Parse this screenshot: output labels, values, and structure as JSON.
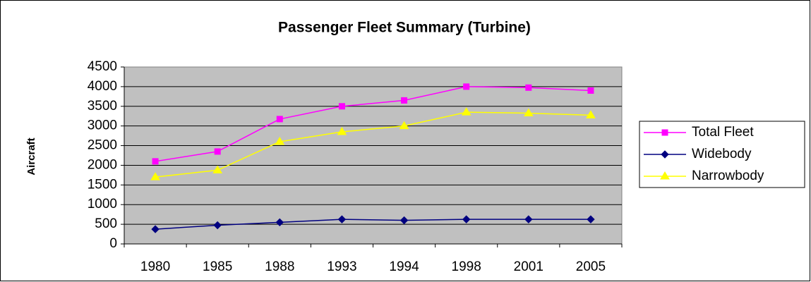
{
  "chart_data": {
    "type": "line",
    "title": "Passenger Fleet Summary (Turbine)",
    "y_label": "Aircraft",
    "categories": [
      "1980",
      "1985",
      "1988",
      "1993",
      "1994",
      "1998",
      "2001",
      "2005"
    ],
    "series": [
      {
        "name": "Total Fleet",
        "color": "#ff00ff",
        "marker": "square",
        "values": [
          2100,
          2350,
          3175,
          3500,
          3650,
          4000,
          3975,
          3900
        ]
      },
      {
        "name": "Widebody",
        "color": "#000080",
        "marker": "diamond",
        "values": [
          375,
          475,
          550,
          625,
          600,
          625,
          625,
          625
        ]
      },
      {
        "name": "Narrowbody",
        "color": "#ffff00",
        "marker": "triangle",
        "values": [
          1700,
          1875,
          2600,
          2850,
          3000,
          3350,
          3325,
          3275
        ]
      }
    ],
    "ylim": [
      0,
      4500
    ],
    "yticks": [
      0,
      500,
      1000,
      1500,
      2000,
      2500,
      3000,
      3500,
      4000,
      4500
    ],
    "grid": true,
    "legend": "right"
  }
}
